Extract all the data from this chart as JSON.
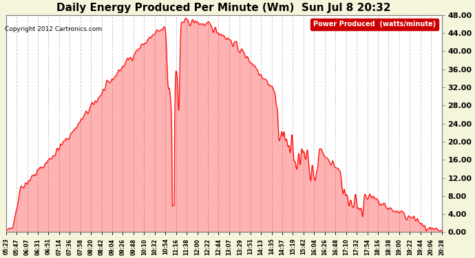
{
  "title": "Daily Energy Produced Per Minute (Wm)  Sun Jul 8 20:32",
  "copyright": "Copyright 2012 Cartronics.com",
  "legend_label": "Power Produced  (watts/minute)",
  "ylabel_right_values": [
    0.0,
    4.0,
    8.0,
    12.0,
    16.0,
    20.0,
    24.0,
    28.0,
    32.0,
    36.0,
    40.0,
    44.0,
    48.0
  ],
  "ymin": 0.0,
  "ymax": 48.0,
  "bg_color": "#f5f5dc",
  "plot_bg_color": "#ffffff",
  "line_color": "#ff0000",
  "grid_color": "#cccccc",
  "title_color": "#000000",
  "legend_bg": "#cc0000",
  "legend_text_color": "#ffffff",
  "xtick_labels": [
    "05:23",
    "05:47",
    "06:07",
    "06:31",
    "06:51",
    "07:14",
    "07:36",
    "07:58",
    "08:20",
    "08:42",
    "09:04",
    "09:26",
    "09:48",
    "10:10",
    "10:32",
    "10:54",
    "11:16",
    "11:38",
    "12:00",
    "12:22",
    "12:44",
    "13:07",
    "13:29",
    "13:51",
    "14:13",
    "14:35",
    "14:57",
    "15:19",
    "15:42",
    "16:04",
    "16:26",
    "16:48",
    "17:10",
    "17:32",
    "17:54",
    "18:16",
    "18:38",
    "19:00",
    "19:22",
    "19:44",
    "20:06",
    "20:28"
  ]
}
